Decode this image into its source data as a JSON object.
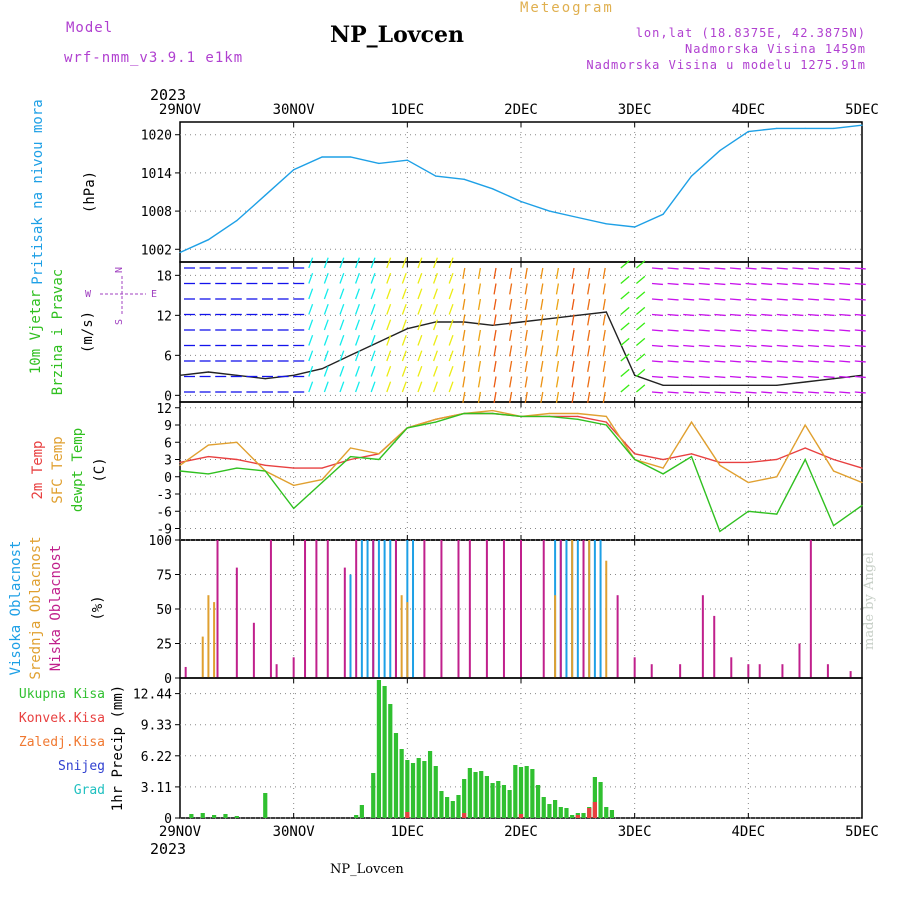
{
  "header": {
    "model_label": "Model",
    "model_name": "wrf-nmm_v3.9.1 e1km",
    "title": "NP_Lovcen",
    "subtitle": "Meteogram",
    "coords": "lon,lat (18.8375E, 42.3875N)",
    "elevation": "Nadmorska Visina 1459m",
    "model_elevation": "Nadmorska Visina u modelu 1275.91m",
    "year": "2023"
  },
  "footer": {
    "station": "NP_Lovcen",
    "credit": "made by Angel"
  },
  "colors": {
    "pressure": "#1ea0e6",
    "temp2m": "#e84040",
    "sfc": "#e0a030",
    "dewpt": "#30c020",
    "high": "#1ea0e6",
    "mid": "#e0a030",
    "low": "#c0208c",
    "precip": "#30c030",
    "conv": "#e84040"
  },
  "chart_data": [
    {
      "type": "line",
      "panel": "pressure",
      "x_ticks": [
        "29NOV",
        "30NOV",
        "1DEC",
        "2DEC",
        "3DEC",
        "4DEC",
        "5DEC"
      ],
      "ylabel": "Pritisak na nivou mora",
      "unit": "(hPa)",
      "yticks": [
        "1002",
        "1008",
        "1014",
        "1020"
      ],
      "ylim": [
        1000,
        1022
      ],
      "grid": true,
      "series": [
        {
          "name": "Pritisak na nivou mora",
          "x": [
            0,
            0.25,
            0.5,
            0.75,
            1,
            1.25,
            1.5,
            1.75,
            2,
            2.25,
            2.5,
            2.75,
            3,
            3.25,
            3.5,
            3.75,
            4,
            4.25,
            4.5,
            4.75,
            5,
            5.25,
            5.5,
            5.75,
            6
          ],
          "values": [
            1001.5,
            1003.5,
            1006.5,
            1010.5,
            1014.5,
            1016.5,
            1016.5,
            1015.5,
            1016,
            1013.5,
            1013,
            1011.5,
            1009.5,
            1008,
            1007,
            1006,
            1005.5,
            1007.5,
            1013.5,
            1017.5,
            1020.5,
            1021,
            1021,
            1021,
            1021.5
          ]
        }
      ]
    },
    {
      "type": "line",
      "panel": "wind",
      "x_ticks": [
        "29NOV",
        "30NOV",
        "1DEC",
        "2DEC",
        "3DEC",
        "4DEC",
        "5DEC"
      ],
      "ylabel": "10m Vjetar",
      "ylabel2": "Brzina i Pravac",
      "unit": "(m/s)",
      "yticks": [
        "0",
        "6",
        "12",
        "18"
      ],
      "ylim": [
        -1,
        20
      ],
      "compass": [
        "N",
        "W",
        "E",
        "S"
      ],
      "grid": true,
      "series": [
        {
          "name": "10m Vjetar",
          "x": [
            0,
            0.25,
            0.5,
            0.75,
            1,
            1.25,
            1.5,
            1.75,
            2,
            2.25,
            2.5,
            2.75,
            3,
            3.25,
            3.5,
            3.75,
            4,
            4.25,
            4.5,
            4.75,
            5,
            5.25,
            5.5,
            5.75,
            6
          ],
          "values": [
            3,
            3.5,
            3,
            2.5,
            3,
            4,
            6,
            8,
            10,
            11,
            11,
            10.5,
            11,
            11.5,
            12,
            12.5,
            3,
            1.5,
            1.5,
            1.5,
            1.5,
            1.5,
            2,
            2.5,
            3
          ]
        }
      ]
    },
    {
      "type": "line",
      "panel": "temperature",
      "x_ticks": [
        "29NOV",
        "30NOV",
        "1DEC",
        "2DEC",
        "3DEC",
        "4DEC",
        "5DEC"
      ],
      "ylabels": [
        "2m Temp",
        "SFC Temp",
        "dewpt Temp"
      ],
      "unit": "(C)",
      "yticks": [
        "-9",
        "-6",
        "-3",
        "0",
        "3",
        "6",
        "9",
        "12"
      ],
      "ylim": [
        -11,
        13
      ],
      "grid": true,
      "series": [
        {
          "name": "2m Temp",
          "x": [
            0,
            0.25,
            0.5,
            0.75,
            1,
            1.25,
            1.5,
            1.75,
            2,
            2.25,
            2.5,
            2.75,
            3,
            3.25,
            3.5,
            3.75,
            4,
            4.25,
            4.5,
            4.75,
            5,
            5.25,
            5.5,
            5.75,
            6
          ],
          "values": [
            2.5,
            3.5,
            3,
            2,
            1.5,
            1.5,
            3,
            4,
            8.5,
            10,
            11,
            11,
            10.5,
            10.5,
            10.5,
            9.5,
            4,
            3,
            4,
            2.5,
            2.5,
            3,
            5,
            3,
            1.5
          ]
        },
        {
          "name": "SFC Temp",
          "x": [
            0,
            0.25,
            0.5,
            0.75,
            1,
            1.25,
            1.5,
            1.75,
            2,
            2.25,
            2.5,
            2.75,
            3,
            3.25,
            3.5,
            3.75,
            4,
            4.25,
            4.5,
            4.75,
            5,
            5.25,
            5.5,
            5.75,
            6
          ],
          "values": [
            2,
            5.5,
            6,
            1,
            -1.5,
            -0.5,
            5,
            4,
            8.5,
            10,
            11,
            11.5,
            10.5,
            11,
            11,
            10.5,
            3,
            1.5,
            9.5,
            2,
            -1,
            0,
            9,
            1,
            -1
          ]
        },
        {
          "name": "dewpt Temp",
          "x": [
            0,
            0.25,
            0.5,
            0.75,
            1,
            1.25,
            1.5,
            1.75,
            2,
            2.25,
            2.5,
            2.75,
            3,
            3.25,
            3.5,
            3.75,
            4,
            4.25,
            4.5,
            4.75,
            5,
            5.25,
            5.5,
            5.75,
            6
          ],
          "values": [
            1,
            0.5,
            1.5,
            1,
            -5.5,
            -1,
            3.5,
            3,
            8.5,
            9.5,
            11,
            11,
            10.5,
            10.5,
            10,
            9,
            3,
            0.5,
            3.5,
            -9.5,
            -6,
            -6.5,
            3,
            -8.5,
            -5
          ]
        }
      ]
    },
    {
      "type": "bar",
      "panel": "clouds",
      "x_ticks": [
        "29NOV",
        "30NOV",
        "1DEC",
        "2DEC",
        "3DEC",
        "4DEC",
        "5DEC"
      ],
      "ylabels": [
        "Visoka Oblacnost",
        "Srednja Oblacnost",
        "Niska Oblacnost"
      ],
      "unit": "(%)",
      "yticks": [
        "0",
        "25",
        "50",
        "75",
        "100"
      ],
      "ylim": [
        0,
        100
      ],
      "grid": true,
      "series": [
        {
          "name": "Visoka Oblacnost",
          "x": [
            1.5,
            1.6,
            1.65,
            1.7,
            1.75,
            1.8,
            1.85,
            1.9,
            2.0,
            2.05,
            3.3,
            3.35,
            3.4,
            3.45,
            3.5,
            3.55,
            3.6,
            3.65,
            3.7
          ],
          "values": [
            75,
            100,
            100,
            100,
            100,
            100,
            100,
            100,
            100,
            100,
            100,
            100,
            100,
            100,
            100,
            100,
            100,
            100,
            100
          ]
        },
        {
          "name": "Srednja Oblacnost",
          "x": [
            0.2,
            0.25,
            0.3,
            1.9,
            1.95,
            2.0,
            3.3,
            3.45,
            3.6,
            3.75
          ],
          "values": [
            30,
            60,
            55,
            55,
            60,
            55,
            60,
            100,
            100,
            85
          ]
        },
        {
          "name": "Niska Oblacnost",
          "x": [
            0.05,
            0.33,
            0.5,
            0.65,
            0.8,
            0.85,
            1.0,
            1.1,
            1.2,
            1.3,
            1.45,
            1.55,
            1.7,
            1.9,
            2.15,
            2.3,
            2.45,
            2.55,
            2.7,
            2.85,
            3.0,
            3.2,
            3.35,
            3.55,
            3.85,
            4.0,
            4.15,
            4.4,
            4.6,
            4.7,
            4.85,
            5.0,
            5.1,
            5.3,
            5.45,
            5.55,
            5.7,
            5.9
          ],
          "values": [
            8,
            100,
            80,
            40,
            100,
            10,
            15,
            100,
            100,
            100,
            80,
            100,
            100,
            100,
            100,
            100,
            100,
            100,
            100,
            100,
            100,
            100,
            100,
            100,
            60,
            15,
            10,
            10,
            60,
            45,
            15,
            10,
            10,
            10,
            25,
            100,
            10,
            5
          ]
        }
      ]
    },
    {
      "type": "bar",
      "panel": "precipitation",
      "x_ticks": [
        "29NOV",
        "30NOV",
        "1DEC",
        "2DEC",
        "3DEC",
        "4DEC",
        "5DEC"
      ],
      "ylabel": "1hr Precip (mm)",
      "legend": [
        "Ukupna Kisa",
        "Konvek.Kisa",
        "Zaledj.Kisa",
        "Snijeg",
        "Grad"
      ],
      "yticks": [
        "0",
        "3.11",
        "6.22",
        "9.33",
        "12.44"
      ],
      "ylim": [
        0,
        14
      ],
      "grid": true,
      "series": [
        {
          "name": "Ukupna Kisa",
          "x": [
            0.1,
            0.2,
            0.3,
            0.4,
            0.5,
            0.75,
            1.55,
            1.6,
            1.7,
            1.75,
            1.8,
            1.85,
            1.9,
            1.95,
            2.0,
            2.05,
            2.1,
            2.15,
            2.2,
            2.25,
            2.3,
            2.35,
            2.4,
            2.45,
            2.5,
            2.55,
            2.6,
            2.65,
            2.7,
            2.75,
            2.8,
            2.85,
            2.9,
            2.95,
            3.0,
            3.05,
            3.1,
            3.15,
            3.2,
            3.25,
            3.3,
            3.35,
            3.4,
            3.45,
            3.5,
            3.55,
            3.6,
            3.65,
            3.7,
            3.75,
            3.8
          ],
          "values": [
            0.4,
            0.5,
            0.3,
            0.4,
            0.2,
            2.5,
            0.3,
            1.3,
            4.5,
            13.8,
            13.2,
            11.4,
            8.5,
            6.9,
            5.8,
            5.5,
            6.0,
            5.7,
            6.7,
            5.2,
            2.7,
            2.1,
            1.7,
            2.3,
            3.9,
            5.0,
            4.6,
            4.7,
            4.2,
            3.5,
            3.7,
            3.3,
            2.8,
            5.3,
            5.1,
            5.2,
            4.9,
            3.3,
            2.1,
            1.4,
            1.8,
            1.1,
            1.0,
            0.3,
            0.5,
            0.5,
            1.1,
            4.1,
            3.6,
            1.1,
            0.8
          ]
        },
        {
          "name": "Konvek.Kisa",
          "x": [
            2.0,
            2.5,
            3.0,
            3.5,
            3.6,
            3.65
          ],
          "values": [
            0.6,
            0.5,
            0.4,
            0.3,
            1.0,
            1.6
          ]
        }
      ]
    }
  ]
}
